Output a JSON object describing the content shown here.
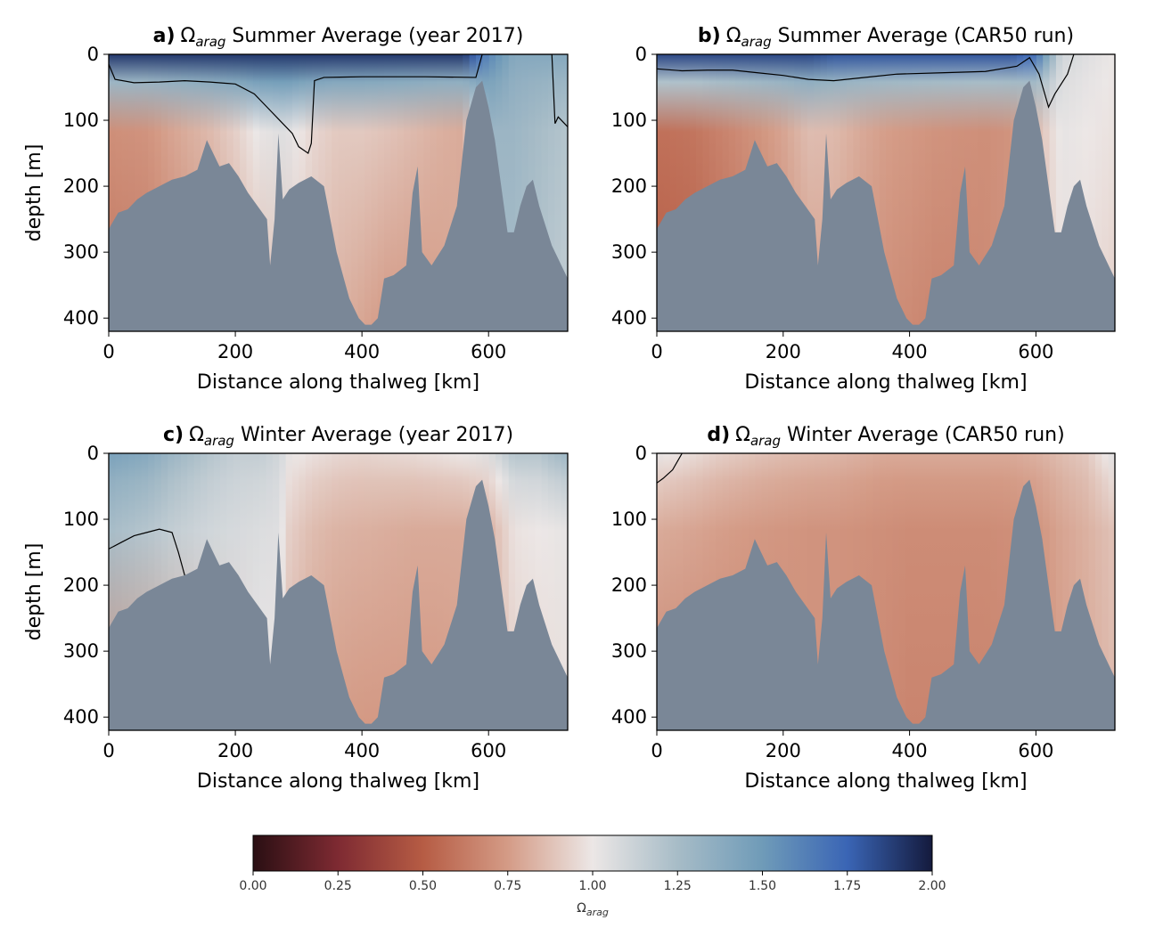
{
  "chart_data": {
    "type": "heatmap",
    "shared": {
      "xlabel": "Distance along thalweg [km]",
      "ylabel": "depth [m]",
      "xlim": [
        0,
        725
      ],
      "ylim": [
        420,
        0
      ],
      "xticks": [
        0,
        200,
        400,
        600
      ],
      "yticks": [
        0,
        100,
        200,
        300,
        400
      ],
      "contour_level": 1.0,
      "land_color": "#7a8797",
      "contour_color": "#000000"
    },
    "panels": [
      {
        "id": "a",
        "label": "a)",
        "omega": "Ω",
        "subscript": "arag",
        "title_rest": " Summer Average (year 2017)",
        "profile": {
          "x": [
            0,
            60,
            100,
            160,
            200,
            240,
            280,
            320,
            360,
            400,
            440,
            480,
            520,
            560,
            600,
            640,
            680,
            725
          ],
          "surface": [
            1.9,
            1.9,
            1.9,
            1.9,
            1.9,
            1.9,
            1.9,
            1.9,
            1.9,
            1.9,
            1.9,
            1.9,
            1.9,
            1.9,
            1.6,
            1.4,
            1.4,
            1.4
          ],
          "mid": [
            0.7,
            0.72,
            0.78,
            0.85,
            0.92,
            1.02,
            1.05,
            0.95,
            0.9,
            0.9,
            0.88,
            0.85,
            0.82,
            0.8,
            1.3,
            1.3,
            1.25,
            1.2
          ],
          "deep": [
            0.6,
            0.62,
            0.66,
            0.72,
            0.8,
            0.85,
            0.9,
            0.86,
            0.82,
            0.78,
            0.74,
            0.74,
            0.76,
            0.8,
            1.25,
            1.25,
            1.2,
            1.15
          ]
        },
        "contour": {
          "x": [
            0,
            10,
            40,
            80,
            120,
            160,
            200,
            230,
            250,
            270,
            290,
            300,
            315,
            320,
            325,
            340,
            400,
            500,
            580,
            590,
            700,
            705,
            710,
            725
          ],
          "depth": [
            15,
            38,
            43,
            42,
            40,
            42,
            45,
            60,
            80,
            100,
            120,
            140,
            150,
            135,
            40,
            35,
            34,
            34,
            35,
            0,
            0,
            105,
            95,
            110
          ]
        }
      },
      {
        "id": "b",
        "label": "b)",
        "omega": "Ω",
        "subscript": "arag",
        "title_rest": " Summer Average (CAR50 run)",
        "profile": {
          "x": [
            0,
            60,
            100,
            160,
            200,
            240,
            280,
            320,
            360,
            400,
            440,
            480,
            520,
            560,
            600,
            640,
            680,
            725
          ],
          "surface": [
            1.85,
            1.85,
            1.85,
            1.85,
            1.85,
            1.85,
            1.8,
            1.8,
            1.8,
            1.8,
            1.8,
            1.8,
            1.8,
            1.8,
            1.7,
            1.1,
            1.05,
            1.0
          ],
          "mid": [
            0.58,
            0.6,
            0.65,
            0.72,
            0.78,
            0.86,
            0.85,
            0.8,
            0.76,
            0.74,
            0.72,
            0.71,
            0.7,
            0.72,
            0.85,
            1.02,
            1.0,
            0.98
          ],
          "deep": [
            0.5,
            0.52,
            0.56,
            0.63,
            0.7,
            0.76,
            0.78,
            0.74,
            0.7,
            0.68,
            0.66,
            0.66,
            0.68,
            0.72,
            0.82,
            0.98,
            0.96,
            0.92
          ]
        },
        "contour": {
          "x": [
            0,
            40,
            80,
            120,
            160,
            200,
            240,
            280,
            320,
            380,
            450,
            520,
            570,
            590,
            605,
            620,
            630,
            650,
            660
          ],
          "depth": [
            22,
            25,
            24,
            24,
            28,
            32,
            38,
            40,
            36,
            30,
            28,
            26,
            18,
            5,
            30,
            80,
            60,
            30,
            0
          ]
        }
      },
      {
        "id": "c",
        "label": "c)",
        "omega": "Ω",
        "subscript": "arag",
        "title_rest": " Winter Average (year 2017)",
        "profile": {
          "x": [
            0,
            60,
            100,
            160,
            200,
            240,
            270,
            285,
            320,
            360,
            400,
            440,
            480,
            520,
            560,
            600,
            640,
            680,
            725
          ],
          "surface": [
            1.45,
            1.4,
            1.3,
            1.2,
            1.15,
            1.15,
            1.1,
            1.02,
            0.98,
            0.95,
            0.94,
            0.95,
            0.96,
            0.98,
            1.0,
            1.05,
            1.2,
            1.2,
            1.3
          ],
          "mid": [
            1.25,
            1.2,
            1.15,
            1.1,
            1.08,
            1.06,
            1.05,
            0.92,
            0.86,
            0.83,
            0.82,
            0.81,
            0.8,
            0.8,
            0.8,
            0.82,
            0.98,
            1.0,
            1.02
          ],
          "deep": [
            0.72,
            0.75,
            0.8,
            0.88,
            0.95,
            1.0,
            1.0,
            0.84,
            0.78,
            0.75,
            0.74,
            0.74,
            0.74,
            0.74,
            0.76,
            0.8,
            0.92,
            0.95,
            0.98
          ]
        },
        "contour": {
          "x": [
            0,
            20,
            40,
            60,
            80,
            100,
            110,
            120
          ],
          "depth": [
            145,
            135,
            125,
            120,
            115,
            120,
            150,
            185
          ]
        }
      },
      {
        "id": "d",
        "label": "d)",
        "omega": "Ω",
        "subscript": "arag",
        "title_rest": " Winter Average (CAR50 run)",
        "profile": {
          "x": [
            0,
            60,
            100,
            160,
            200,
            240,
            280,
            320,
            360,
            400,
            440,
            480,
            520,
            560,
            600,
            640,
            680,
            725
          ],
          "surface": [
            1.02,
            0.96,
            0.92,
            0.88,
            0.86,
            0.85,
            0.84,
            0.82,
            0.8,
            0.8,
            0.8,
            0.8,
            0.8,
            0.8,
            0.82,
            0.86,
            0.9,
            1.05
          ],
          "mid": [
            0.8,
            0.78,
            0.76,
            0.74,
            0.73,
            0.72,
            0.72,
            0.71,
            0.7,
            0.69,
            0.69,
            0.69,
            0.69,
            0.7,
            0.72,
            0.78,
            0.82,
            0.88
          ],
          "deep": [
            0.66,
            0.66,
            0.67,
            0.68,
            0.7,
            0.72,
            0.72,
            0.7,
            0.68,
            0.66,
            0.66,
            0.66,
            0.66,
            0.67,
            0.7,
            0.76,
            0.8,
            0.85
          ]
        },
        "contour": {
          "x": [
            0,
            10,
            25,
            40
          ],
          "depth": [
            45,
            38,
            25,
            0
          ]
        }
      }
    ],
    "bathymetry": {
      "x": [
        0,
        15,
        30,
        45,
        60,
        80,
        100,
        120,
        140,
        155,
        165,
        175,
        190,
        205,
        220,
        235,
        250,
        255,
        262,
        268,
        275,
        285,
        300,
        320,
        340,
        360,
        380,
        395,
        405,
        415,
        425,
        435,
        450,
        470,
        480,
        488,
        495,
        510,
        530,
        550,
        565,
        580,
        590,
        600,
        610,
        620,
        630,
        640,
        650,
        660,
        670,
        680,
        690,
        700,
        710,
        720,
        725
      ],
      "depth": [
        265,
        240,
        235,
        220,
        210,
        200,
        190,
        185,
        175,
        130,
        150,
        170,
        165,
        185,
        210,
        230,
        250,
        320,
        250,
        120,
        220,
        205,
        195,
        185,
        200,
        300,
        370,
        400,
        410,
        410,
        400,
        340,
        335,
        320,
        210,
        170,
        300,
        320,
        290,
        230,
        100,
        50,
        40,
        80,
        130,
        200,
        270,
        270,
        230,
        200,
        190,
        230,
        260,
        290,
        310,
        330,
        340
      ]
    },
    "colorbar": {
      "label_symbol": "Ω",
      "label_subscript": "arag",
      "range": [
        0,
        2
      ],
      "ticks": [
        "0.00",
        "0.25",
        "0.50",
        "0.75",
        "1.00",
        "1.25",
        "1.50",
        "1.75",
        "2.00"
      ],
      "cmap": [
        {
          "v": 0.0,
          "c": "#2a0f13"
        },
        {
          "v": 0.25,
          "c": "#7e2a32"
        },
        {
          "v": 0.5,
          "c": "#b65c44"
        },
        {
          "v": 0.75,
          "c": "#d49b86"
        },
        {
          "v": 1.0,
          "c": "#ece7e6"
        },
        {
          "v": 1.25,
          "c": "#a7bcc7"
        },
        {
          "v": 1.5,
          "c": "#6f9bb8"
        },
        {
          "v": 1.75,
          "c": "#3a65b5"
        },
        {
          "v": 2.0,
          "c": "#141a3d"
        }
      ]
    }
  }
}
